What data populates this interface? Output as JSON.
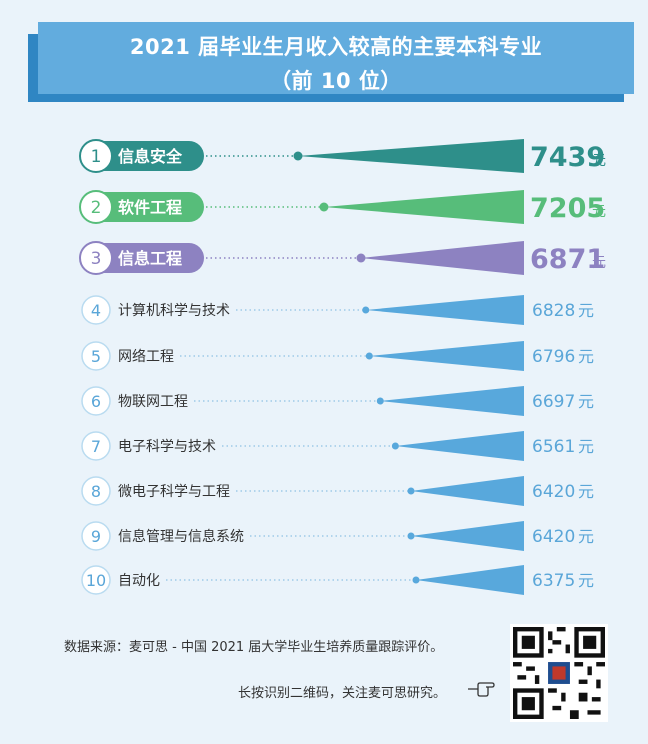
{
  "header": {
    "title": "2021 届毕业生月收入较高的主要本科专业",
    "subtitle": "（前 10 位）"
  },
  "chart_data": {
    "type": "bar",
    "orientation": "horizontal",
    "unit": "元",
    "categories": [
      "信息安全",
      "软件工程",
      "信息工程",
      "计算机科学与技术",
      "网络工程",
      "物联网工程",
      "电子科学与技术",
      "微电子科学与工程",
      "信息管理与信息系统",
      "自动化"
    ],
    "ranks": [
      "1",
      "2",
      "3",
      "4",
      "5",
      "6",
      "7",
      "8",
      "9",
      "10"
    ],
    "values": [
      7439,
      7205,
      6871,
      6828,
      6796,
      6697,
      6561,
      6420,
      6420,
      6375
    ],
    "top_colors": [
      "#2e8f8a",
      "#57bd7a",
      "#8d82c1"
    ],
    "default_color": "#58a8dc"
  },
  "footer": {
    "source": "数据来源：麦可思 - 中国 2021 届大学毕业生培养质量跟踪评价。",
    "cta": "长按识别二维码，关注麦可思研究。"
  }
}
